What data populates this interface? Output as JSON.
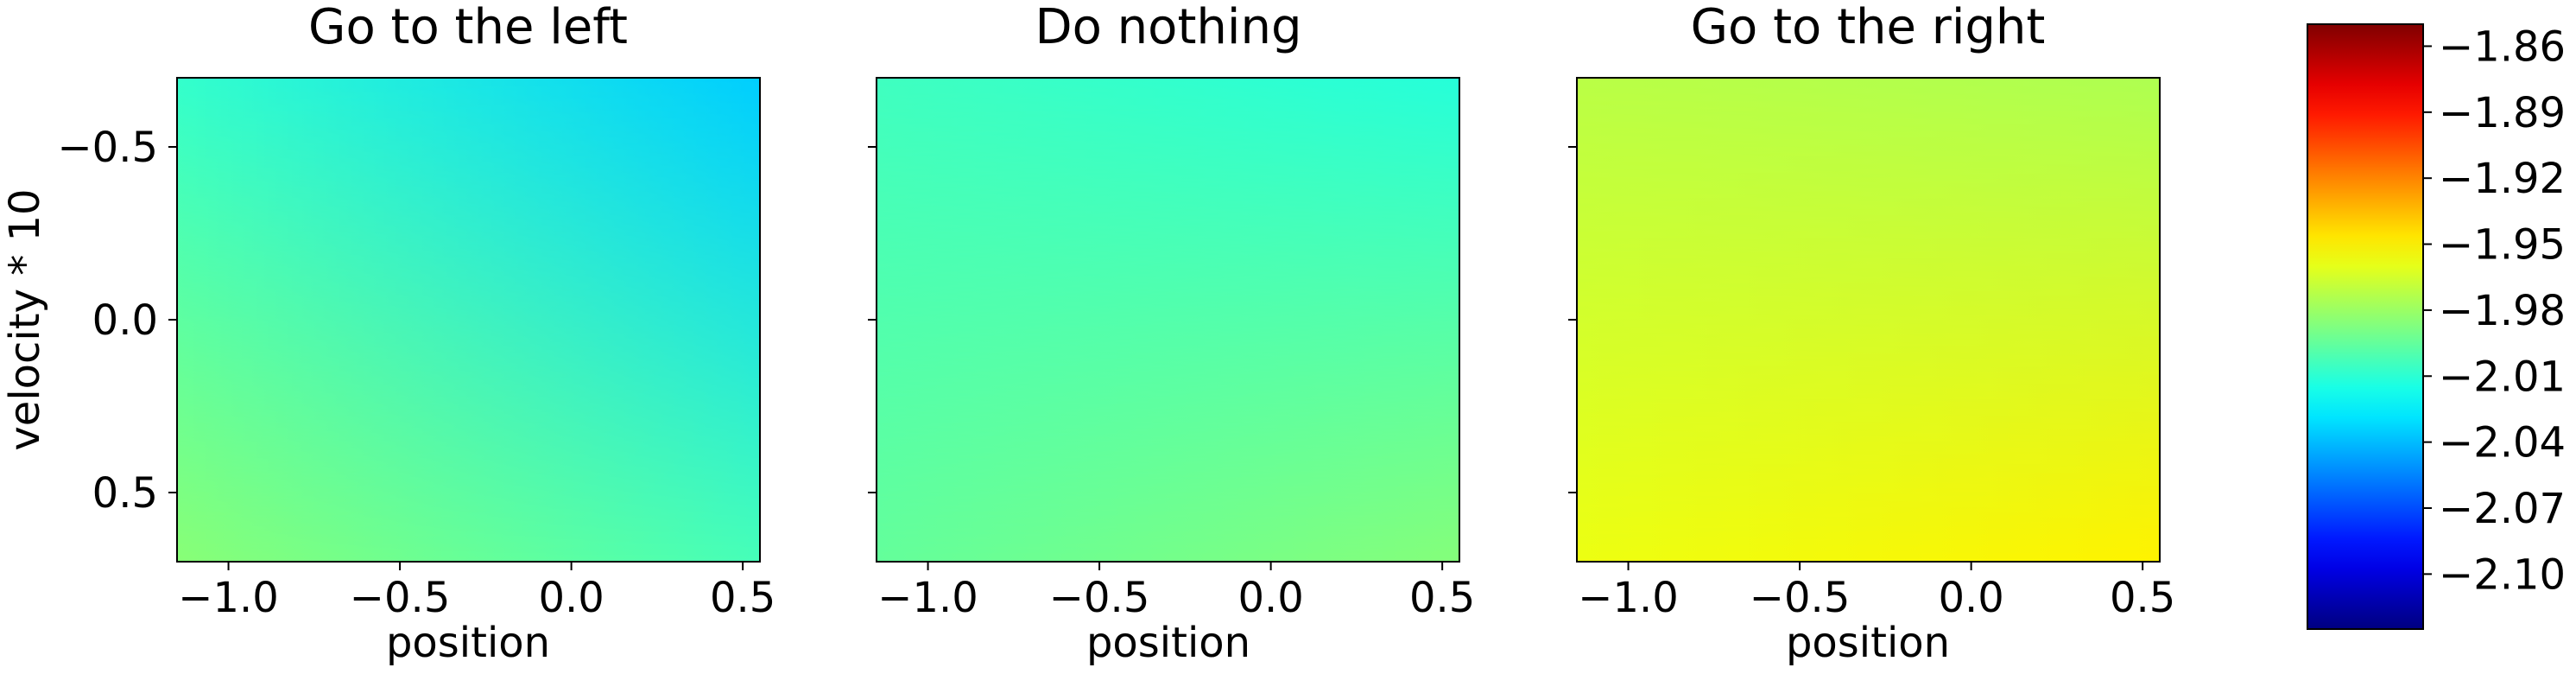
{
  "chart_data": [
    {
      "type": "heatmap",
      "title": "Go to the left",
      "xlabel": "position",
      "ylabel": "velocity * 10",
      "xlim": [
        -1.15,
        0.55
      ],
      "ylim": [
        0.7,
        -0.7
      ],
      "xticks": [
        "−1.0",
        "−0.5",
        "0.0",
        "0.5"
      ],
      "xtick_values": [
        -1.0,
        -0.5,
        0.0,
        0.5
      ],
      "yticks": [
        "−0.5",
        "0.0",
        "0.5"
      ],
      "ytick_values": [
        -0.5,
        0.0,
        0.5
      ],
      "corner_values": {
        "top_left": -2.008,
        "top_right": -2.035,
        "bottom_left": -1.985,
        "bottom_right": -2.003
      }
    },
    {
      "type": "heatmap",
      "title": "Do nothing",
      "xlabel": "position",
      "ylabel": "",
      "xlim": [
        -1.15,
        0.55
      ],
      "ylim": [
        0.7,
        -0.7
      ],
      "xticks": [
        "−1.0",
        "−0.5",
        "0.0",
        "0.5"
      ],
      "xtick_values": [
        -1.0,
        -0.5,
        0.0,
        0.5
      ],
      "yticks": [],
      "ytick_values": [
        -0.5,
        0.0,
        0.5
      ],
      "corner_values": {
        "top_left": -2.005,
        "top_right": -2.012,
        "bottom_left": -1.995,
        "bottom_right": -1.986
      }
    },
    {
      "type": "heatmap",
      "title": "Go to the right",
      "xlabel": "position",
      "ylabel": "",
      "xlim": [
        -1.15,
        0.55
      ],
      "ylim": [
        0.7,
        -0.7
      ],
      "xticks": [
        "−1.0",
        "−0.5",
        "0.0",
        "0.5"
      ],
      "xtick_values": [
        -1.0,
        -0.5,
        0.0,
        0.5
      ],
      "yticks": [],
      "ytick_values": [
        -0.5,
        0.0,
        0.5
      ],
      "corner_values": {
        "top_left": -1.972,
        "top_right": -1.975,
        "bottom_left": -1.958,
        "bottom_right": -1.95
      }
    }
  ],
  "colorbar": {
    "colormap": "jet",
    "range": [
      -2.125,
      -1.85
    ],
    "ticks": [
      "−1.86",
      "−1.89",
      "−1.92",
      "−1.95",
      "−1.98",
      "−2.01",
      "−2.04",
      "−2.07",
      "−2.10"
    ],
    "tick_values": [
      -1.86,
      -1.89,
      -1.92,
      -1.95,
      -1.98,
      -2.01,
      -2.04,
      -2.07,
      -2.1
    ]
  }
}
